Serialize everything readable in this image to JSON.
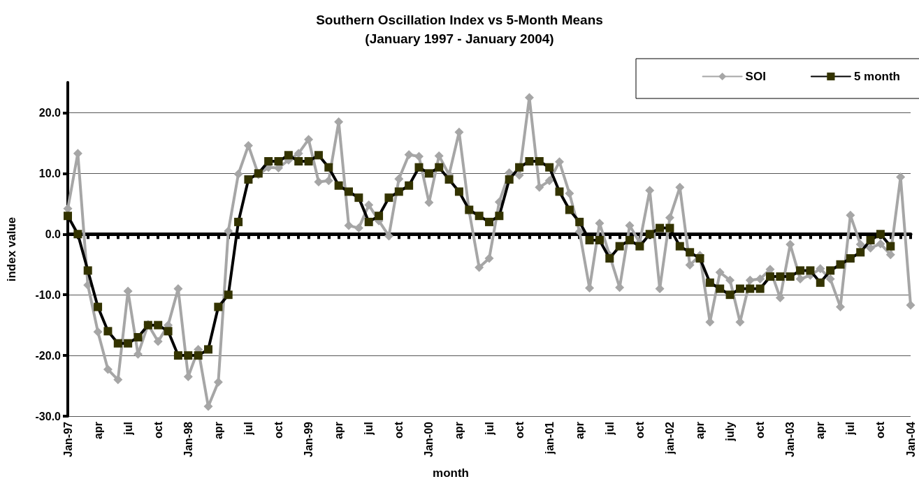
{
  "chart_data": {
    "type": "line",
    "title": "Southern Oscillation Index vs 5-Month Means",
    "subtitle": "(January 1997 - January 2004)",
    "xlabel": "month",
    "ylabel": "index value",
    "categories": [
      "Jan-97",
      null,
      null,
      "apr",
      null,
      null,
      "jul",
      null,
      null,
      "oct",
      null,
      null,
      "Jan-98",
      null,
      null,
      "apr",
      null,
      null,
      "jul",
      null,
      null,
      "oct",
      null,
      null,
      "Jan-99",
      null,
      null,
      "apr",
      null,
      null,
      "jul",
      null,
      null,
      "oct",
      null,
      null,
      "Jan-00",
      null,
      null,
      "apr",
      null,
      null,
      "jul",
      null,
      null,
      "oct",
      null,
      null,
      "jan-01",
      null,
      null,
      "apr",
      null,
      null,
      "jul",
      null,
      null,
      "oct",
      null,
      null,
      "jan-02",
      null,
      null,
      "apr",
      null,
      null,
      "july",
      null,
      null,
      "oct",
      null,
      null,
      "Jan-03",
      null,
      null,
      "apr",
      null,
      null,
      "jul",
      null,
      null,
      "oct",
      null,
      null,
      "Jan-04"
    ],
    "series": [
      {
        "name": "SOI",
        "color": "#a6a6a6",
        "marker": "diamond",
        "values": [
          4.2,
          13.3,
          -8.4,
          -16.1,
          -22.3,
          -24,
          -9.4,
          -19.8,
          -14.9,
          -17.7,
          -15,
          -9,
          -23.5,
          -19,
          -28.4,
          -24.4,
          0.5,
          9.9,
          14.6,
          9.8,
          11,
          10.9,
          12.2,
          13.3,
          15.6,
          8.6,
          8.8,
          18.5,
          1.4,
          1,
          4.8,
          2.2,
          -0.3,
          9.1,
          13.1,
          12.8,
          5.2,
          12.9,
          9.8,
          16.8,
          3.8,
          -5.5,
          -4,
          5.3,
          10.1,
          9.7,
          22.5,
          7.7,
          8.8,
          11.9,
          6.7,
          0.4,
          -8.9,
          1.8,
          -3.5,
          -8.8,
          1.4,
          -1.4,
          7.2,
          -9,
          2.7,
          7.7,
          -5.1,
          -3.5,
          -14.5,
          -6.3,
          -7.6,
          -14.5,
          -7.6,
          -7.4,
          -5.8,
          -10.5,
          -1.7,
          -7.4,
          -6.8,
          -5.7,
          -7.4,
          -12,
          3.1,
          -1.7,
          -2.3,
          -1.6,
          -3.4,
          9.4,
          -11.7
        ]
      },
      {
        "name": "5 month",
        "color": "#333300",
        "marker": "square",
        "values": [
          3,
          0,
          -6,
          -12,
          -16,
          -18,
          -18,
          -17,
          -15,
          -15,
          -16,
          -20,
          -20,
          -20,
          -19,
          -12,
          -10,
          2,
          9,
          10,
          12,
          12,
          13,
          12,
          12,
          13,
          11,
          8,
          7,
          6,
          2,
          3,
          6,
          7,
          8,
          11,
          10,
          11,
          9,
          7,
          4,
          3,
          2,
          3,
          9,
          11,
          12,
          12,
          11,
          7,
          4,
          2,
          -1,
          -1,
          -4,
          -2,
          -1,
          -2,
          0,
          1,
          1,
          -2,
          -3,
          -4,
          -8,
          -9,
          -10,
          -9,
          -9,
          -9,
          -7,
          -7,
          -7,
          -6,
          -6,
          -8,
          -6,
          -5,
          -4,
          -3,
          -1,
          0,
          -2,
          null,
          null
        ]
      }
    ],
    "ylim": [
      -30,
      25
    ],
    "yticks": [
      {
        "value": -30,
        "label": "-30.0"
      },
      {
        "value": -20,
        "label": "-20.0"
      },
      {
        "value": -10,
        "label": "-10.0"
      },
      {
        "value": 0,
        "label": "0.0"
      },
      {
        "value": 10,
        "label": "10.0"
      },
      {
        "value": 20,
        "label": "20.0"
      }
    ],
    "grid": "y",
    "legend": "top right",
    "line_style": "solid"
  }
}
